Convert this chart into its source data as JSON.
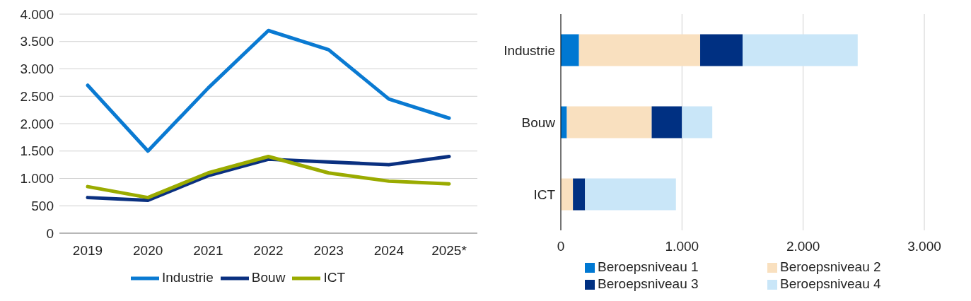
{
  "chart_data": [
    {
      "type": "line",
      "categories": [
        "2019",
        "2020",
        "2021",
        "2022",
        "2023",
        "2024",
        "2025*"
      ],
      "series": [
        {
          "name": "Industrie",
          "color": "#0a7ad2",
          "values": [
            2700,
            1500,
            2650,
            3700,
            3350,
            2450,
            2100
          ]
        },
        {
          "name": "Bouw",
          "color": "#0a3080",
          "values": [
            650,
            600,
            1050,
            1350,
            1300,
            1250,
            1400
          ]
        },
        {
          "name": "ICT",
          "color": "#9aab00",
          "values": [
            850,
            650,
            1100,
            1400,
            1100,
            950,
            900
          ]
        }
      ],
      "ylim": [
        0,
        4000
      ],
      "yticks": [
        {
          "value": 0,
          "label": "0"
        },
        {
          "value": 500,
          "label": "500"
        },
        {
          "value": 1000,
          "label": "1.000"
        },
        {
          "value": 1500,
          "label": "1.500"
        },
        {
          "value": 2000,
          "label": "2.000"
        },
        {
          "value": 2500,
          "label": "2.500"
        },
        {
          "value": 3000,
          "label": "3.000"
        },
        {
          "value": 3500,
          "label": "3.500"
        },
        {
          "value": 4000,
          "label": "4.000"
        }
      ],
      "grid": "y",
      "legend": "bottom",
      "marker": "none",
      "line_style": "solid"
    },
    {
      "type": "bar",
      "orientation": "horizontal",
      "stacked": true,
      "categories": [
        "Industrie",
        "Bouw",
        "ICT"
      ],
      "series": [
        {
          "name": "Beroepsniveau 1",
          "color": "#0078d2",
          "values": [
            150,
            50,
            0
          ]
        },
        {
          "name": "Beroepsniveau 2",
          "color": "#f9e0bf",
          "values": [
            1000,
            700,
            100
          ]
        },
        {
          "name": "Beroepsniveau 3",
          "color": "#003082",
          "values": [
            350,
            250,
            100
          ]
        },
        {
          "name": "Beroepsniveau 4",
          "color": "#c9e6f8",
          "values": [
            950,
            250,
            750
          ]
        }
      ],
      "xlim": [
        0,
        3000
      ],
      "xticks": [
        {
          "value": 0,
          "label": "0"
        },
        {
          "value": 1000,
          "label": "1.000"
        },
        {
          "value": 2000,
          "label": "2.000"
        },
        {
          "value": 3000,
          "label": "3.000"
        }
      ],
      "grid": "x",
      "legend": "bottom"
    }
  ]
}
